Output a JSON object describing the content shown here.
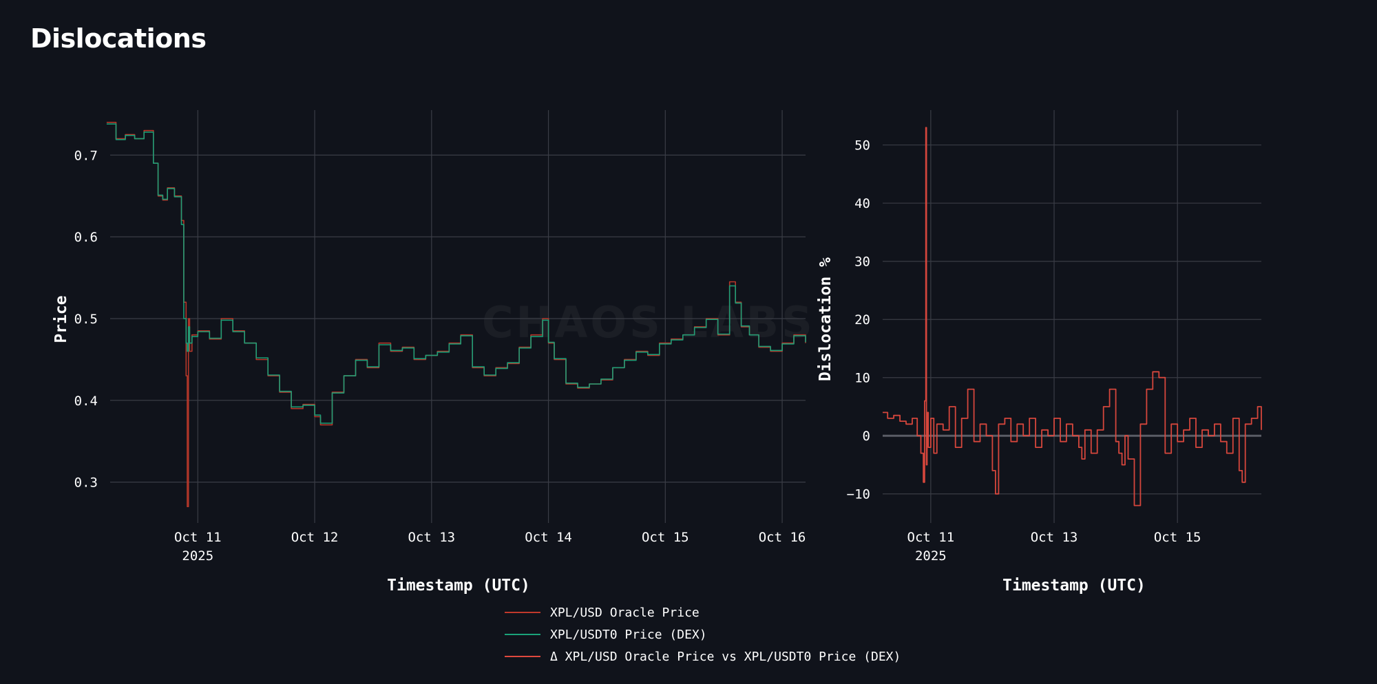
{
  "page": {
    "title": "Dislocations"
  },
  "colors": {
    "background": "#10131b",
    "grid": "#3a3d46",
    "zero_line": "#5a5d66",
    "oracle": "#c0392b",
    "dex": "#1aa37a",
    "delta": "#e0493e"
  },
  "watermark": "CHAOS LABS",
  "chart_data": [
    {
      "type": "line",
      "title": "",
      "xlabel": "Timestamp (UTC)",
      "ylabel": "Price",
      "x_unit": "days since Oct 10 2025 00:00 UTC",
      "xlim": [
        0.25,
        6.2
      ],
      "ylim": [
        0.25,
        0.755
      ],
      "grid": true,
      "x_ticks": [
        {
          "value": 1,
          "label": "Oct 11",
          "sublabel": "2025"
        },
        {
          "value": 2,
          "label": "Oct 12",
          "sublabel": ""
        },
        {
          "value": 3,
          "label": "Oct 13",
          "sublabel": ""
        },
        {
          "value": 4,
          "label": "Oct 14",
          "sublabel": ""
        },
        {
          "value": 5,
          "label": "Oct 15",
          "sublabel": ""
        },
        {
          "value": 6,
          "label": "Oct 16",
          "sublabel": ""
        }
      ],
      "y_ticks": [
        {
          "value": 0.3,
          "label": "0.3"
        },
        {
          "value": 0.4,
          "label": "0.4"
        },
        {
          "value": 0.5,
          "label": "0.5"
        },
        {
          "value": 0.6,
          "label": "0.6"
        },
        {
          "value": 0.7,
          "label": "0.7"
        }
      ],
      "series": [
        {
          "name": "XPL/USD Oracle Price",
          "color": "#c0392b",
          "x": [
            0.22,
            0.3,
            0.38,
            0.46,
            0.54,
            0.62,
            0.66,
            0.7,
            0.74,
            0.8,
            0.86,
            0.88,
            0.9,
            0.91,
            0.92,
            0.93,
            0.95,
            1.0,
            1.1,
            1.2,
            1.3,
            1.4,
            1.5,
            1.6,
            1.7,
            1.8,
            1.9,
            2.0,
            2.05,
            2.15,
            2.25,
            2.35,
            2.45,
            2.55,
            2.65,
            2.75,
            2.85,
            2.95,
            3.05,
            3.15,
            3.25,
            3.35,
            3.45,
            3.55,
            3.65,
            3.75,
            3.85,
            3.95,
            4.0,
            4.05,
            4.15,
            4.25,
            4.35,
            4.45,
            4.55,
            4.65,
            4.75,
            4.85,
            4.95,
            5.05,
            5.15,
            5.25,
            5.35,
            5.45,
            5.55,
            5.6,
            5.65,
            5.72,
            5.8,
            5.9,
            6.0,
            6.1,
            6.2
          ],
          "y": [
            0.74,
            0.72,
            0.725,
            0.72,
            0.73,
            0.69,
            0.65,
            0.645,
            0.66,
            0.65,
            0.62,
            0.52,
            0.43,
            0.27,
            0.5,
            0.46,
            0.48,
            0.485,
            0.475,
            0.5,
            0.485,
            0.47,
            0.45,
            0.43,
            0.41,
            0.39,
            0.395,
            0.38,
            0.37,
            0.41,
            0.43,
            0.45,
            0.44,
            0.47,
            0.46,
            0.465,
            0.45,
            0.455,
            0.46,
            0.47,
            0.48,
            0.44,
            0.43,
            0.44,
            0.445,
            0.465,
            0.48,
            0.5,
            0.47,
            0.45,
            0.42,
            0.415,
            0.42,
            0.425,
            0.44,
            0.45,
            0.46,
            0.455,
            0.47,
            0.475,
            0.48,
            0.49,
            0.5,
            0.48,
            0.545,
            0.52,
            0.49,
            0.48,
            0.465,
            0.46,
            0.47,
            0.48,
            0.47
          ]
        },
        {
          "name": "XPL/USDT0 Price (DEX)",
          "color": "#1aa37a",
          "x": [
            0.22,
            0.3,
            0.38,
            0.46,
            0.54,
            0.62,
            0.66,
            0.7,
            0.74,
            0.8,
            0.86,
            0.88,
            0.9,
            0.91,
            0.92,
            0.93,
            0.95,
            1.0,
            1.1,
            1.2,
            1.3,
            1.4,
            1.5,
            1.6,
            1.7,
            1.8,
            1.9,
            2.0,
            2.05,
            2.15,
            2.25,
            2.35,
            2.45,
            2.55,
            2.65,
            2.75,
            2.85,
            2.95,
            3.05,
            3.15,
            3.25,
            3.35,
            3.45,
            3.55,
            3.65,
            3.75,
            3.85,
            3.95,
            4.0,
            4.05,
            4.15,
            4.25,
            4.35,
            4.45,
            4.55,
            4.65,
            4.75,
            4.85,
            4.95,
            5.05,
            5.15,
            5.25,
            5.35,
            5.45,
            5.55,
            5.6,
            5.65,
            5.72,
            5.8,
            5.9,
            6.0,
            6.1,
            6.2
          ],
          "y": [
            0.738,
            0.719,
            0.724,
            0.72,
            0.728,
            0.69,
            0.651,
            0.646,
            0.659,
            0.649,
            0.615,
            0.5,
            0.47,
            0.46,
            0.49,
            0.47,
            0.478,
            0.484,
            0.476,
            0.498,
            0.484,
            0.47,
            0.452,
            0.431,
            0.411,
            0.392,
            0.394,
            0.382,
            0.372,
            0.409,
            0.43,
            0.449,
            0.441,
            0.468,
            0.461,
            0.464,
            0.451,
            0.455,
            0.459,
            0.469,
            0.479,
            0.441,
            0.431,
            0.439,
            0.446,
            0.464,
            0.478,
            0.498,
            0.471,
            0.451,
            0.421,
            0.416,
            0.42,
            0.426,
            0.44,
            0.449,
            0.459,
            0.456,
            0.469,
            0.474,
            0.48,
            0.489,
            0.499,
            0.481,
            0.54,
            0.519,
            0.491,
            0.48,
            0.466,
            0.461,
            0.469,
            0.479,
            0.471
          ]
        }
      ]
    },
    {
      "type": "line",
      "title": "",
      "xlabel": "Timestamp (UTC)",
      "ylabel": "Dislocation %",
      "x_unit": "days since Oct 10 2025 00:00 UTC",
      "xlim": [
        0.22,
        6.36
      ],
      "ylim": [
        -15,
        56
      ],
      "grid": true,
      "x_ticks": [
        {
          "value": 1,
          "label": "Oct 11",
          "sublabel": "2025"
        },
        {
          "value": 3,
          "label": "Oct 13",
          "sublabel": ""
        },
        {
          "value": 5,
          "label": "Oct 15",
          "sublabel": ""
        }
      ],
      "y_ticks": [
        {
          "value": -10,
          "label": "−10"
        },
        {
          "value": 0,
          "label": "0"
        },
        {
          "value": 10,
          "label": "10"
        },
        {
          "value": 20,
          "label": "20"
        },
        {
          "value": 30,
          "label": "30"
        },
        {
          "value": 40,
          "label": "40"
        },
        {
          "value": 50,
          "label": "50"
        }
      ],
      "series": [
        {
          "name": "Δ XPL/USD Oracle Price vs XPL/USDT0 Price (DEX)",
          "color": "#e0493e",
          "x": [
            0.22,
            0.3,
            0.4,
            0.5,
            0.6,
            0.7,
            0.78,
            0.84,
            0.88,
            0.9,
            0.92,
            0.93,
            0.94,
            0.96,
            1.0,
            1.05,
            1.1,
            1.2,
            1.3,
            1.4,
            1.5,
            1.6,
            1.7,
            1.8,
            1.9,
            2.0,
            2.05,
            2.1,
            2.2,
            2.3,
            2.4,
            2.5,
            2.6,
            2.7,
            2.8,
            2.9,
            3.0,
            3.1,
            3.2,
            3.3,
            3.4,
            3.45,
            3.5,
            3.6,
            3.7,
            3.8,
            3.9,
            4.0,
            4.05,
            4.1,
            4.15,
            4.2,
            4.3,
            4.4,
            4.5,
            4.6,
            4.7,
            4.8,
            4.9,
            5.0,
            5.1,
            5.2,
            5.3,
            5.4,
            5.5,
            5.6,
            5.7,
            5.8,
            5.9,
            6.0,
            6.05,
            6.1,
            6.2,
            6.3,
            6.36
          ],
          "y": [
            4,
            3,
            3.5,
            2.5,
            2,
            3,
            0,
            -3,
            -8,
            6,
            53,
            -5,
            4,
            -2,
            3,
            -3,
            2,
            1,
            5,
            -2,
            3,
            8,
            -1,
            2,
            0,
            -6,
            -10,
            2,
            3,
            -1,
            2,
            0,
            3,
            -2,
            1,
            0,
            3,
            -1,
            2,
            0,
            -2,
            -4,
            1,
            -3,
            1,
            5,
            8,
            -1,
            -3,
            -5,
            0,
            -4,
            -12,
            2,
            8,
            11,
            10,
            -3,
            2,
            -1,
            1,
            3,
            -2,
            1,
            0,
            2,
            -1,
            -3,
            3,
            -6,
            -8,
            2,
            3,
            5,
            1
          ]
        }
      ]
    }
  ]
}
